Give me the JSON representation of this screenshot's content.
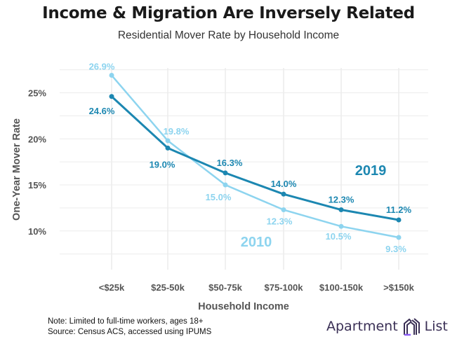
{
  "chart_data": {
    "type": "line",
    "title": "Income & Migration Are Inversely Related",
    "subtitle": "Residential Mover Rate by Household Income",
    "xlabel": "Household Income",
    "ylabel": "One-Year Mover Rate",
    "categories": [
      "<$25k",
      "$25-50k",
      "$50-75k",
      "$75-100k",
      "$100-150k",
      ">$150k"
    ],
    "yticks": [
      10,
      15,
      20,
      25
    ],
    "ytick_labels": [
      "10%",
      "15%",
      "20%",
      "25%"
    ],
    "ylim": [
      5.8,
      27.7
    ],
    "grid": true,
    "series": [
      {
        "name": "2019",
        "values": [
          24.6,
          19.0,
          16.3,
          14.0,
          12.3,
          11.2
        ],
        "labels": [
          "24.6%",
          "19.0%",
          "16.3%",
          "14.0%",
          "12.3%",
          "11.2%"
        ],
        "color": "#1c87b1"
      },
      {
        "name": "2010",
        "values": [
          26.9,
          19.8,
          15.0,
          12.3,
          10.5,
          9.3
        ],
        "labels": [
          "26.9%",
          "19.8%",
          "15.0%",
          "12.3%",
          "10.5%",
          "9.3%"
        ],
        "color": "#8dd4ef"
      }
    ]
  },
  "notes": [
    "Note: Limited to full-time workers, ages 18+",
    "Source: Census ACS, accessed using IPUMS"
  ],
  "logo": {
    "left": "Apartment",
    "right": "List",
    "color": "#3a2f55",
    "accent": "#8b5cf6"
  }
}
